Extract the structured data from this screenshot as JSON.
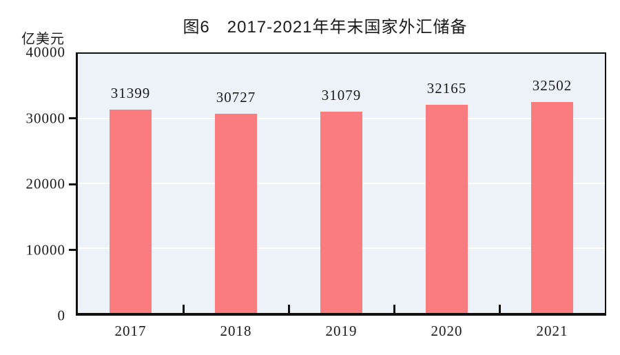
{
  "title": "图6　2017-2021年年末国家外汇储备",
  "colors": {
    "bar": "#FB7C7E",
    "plot_background": "#ECF2F7",
    "gridline": "#FFFFFF",
    "axis": "#111111",
    "text": "#1A1A1A"
  },
  "chart_data": {
    "type": "bar",
    "title": "图6　2017-2021年年末国家外汇储备",
    "categories": [
      "2017",
      "2018",
      "2019",
      "2020",
      "2021"
    ],
    "values": [
      31399,
      30727,
      31079,
      32165,
      32502
    ],
    "ylabel": "亿美元",
    "xlabel": "",
    "ylim": [
      0,
      40000
    ],
    "yticks": [
      0,
      10000,
      20000,
      30000,
      40000
    ],
    "grid_values": [
      10000,
      20000,
      30000
    ],
    "grid": "horizontal",
    "legend": "none",
    "data_labels_shown": true
  }
}
